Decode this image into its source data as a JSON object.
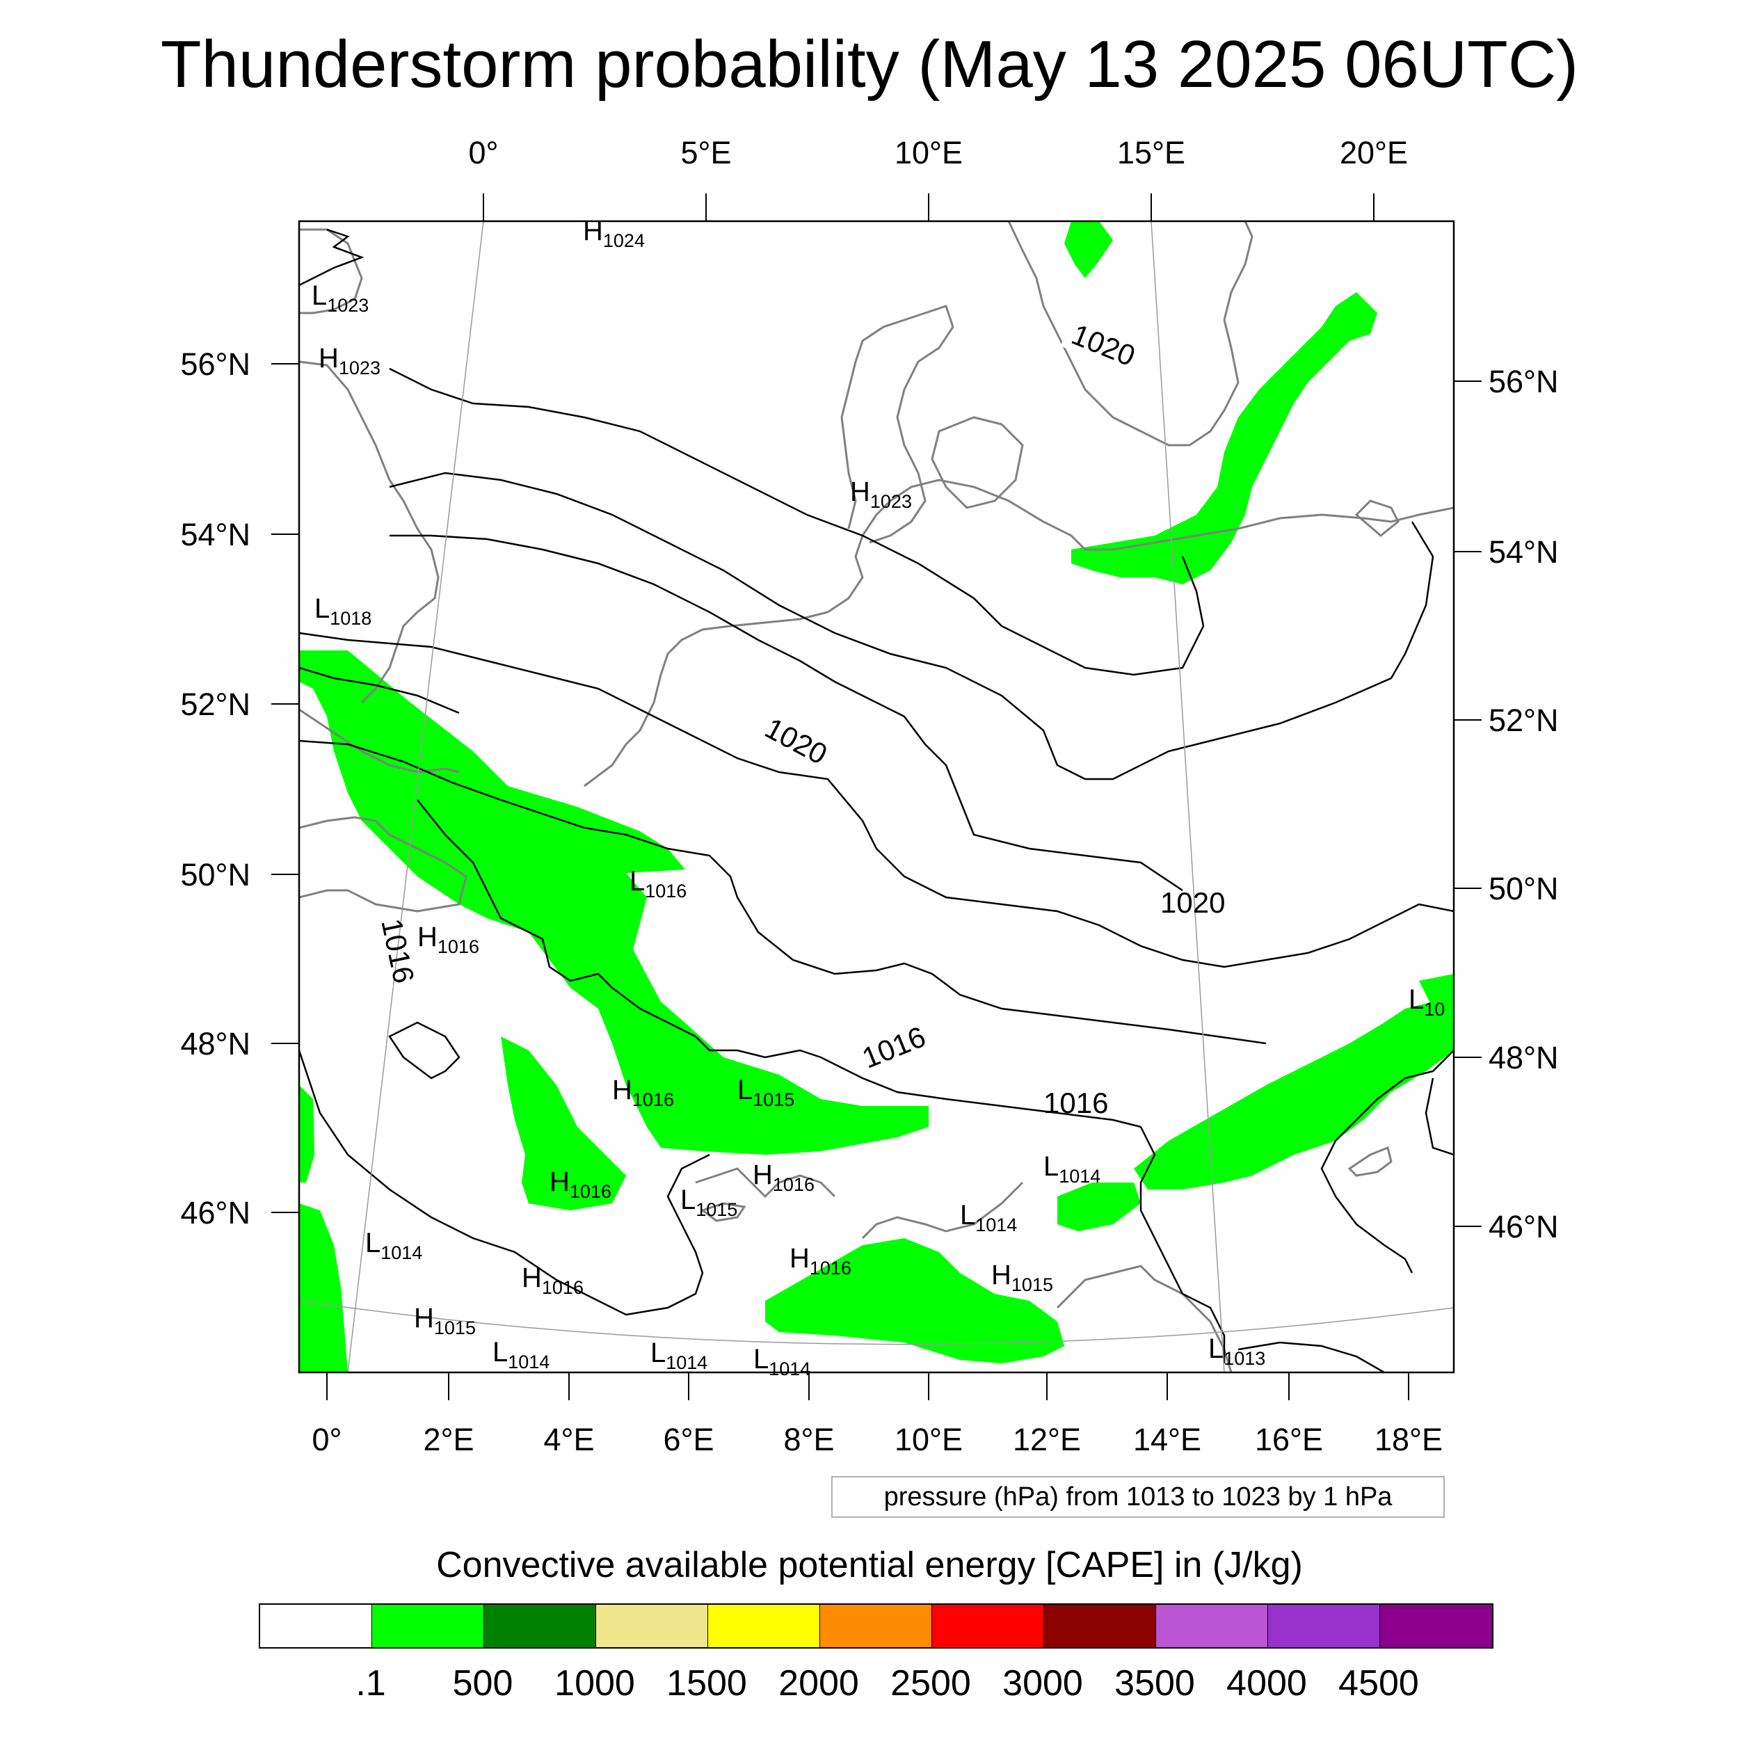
{
  "title": "Thunderstorm probability (May 13 2025 06UTC)",
  "axes": {
    "top_lon_labels": [
      "0°",
      "5°E",
      "10°E",
      "15°E",
      "20°E"
    ],
    "bottom_lon_labels": [
      "0°",
      "2°E",
      "4°E",
      "6°E",
      "8°E",
      "10°E",
      "12°E",
      "14°E",
      "16°E",
      "18°E"
    ],
    "left_lat_labels": [
      "56°N",
      "54°N",
      "52°N",
      "50°N",
      "48°N",
      "46°N"
    ],
    "right_lat_labels": [
      "56°N",
      "54°N",
      "52°N",
      "50°N",
      "48°N",
      "46°N"
    ]
  },
  "pressure_centers": [
    {
      "type": "H",
      "value": "1024"
    },
    {
      "type": "L",
      "value": "1023"
    },
    {
      "type": "H",
      "value": "1023"
    },
    {
      "type": "H",
      "value": "1023"
    },
    {
      "type": "L",
      "value": "1018"
    },
    {
      "type": "L",
      "value": "1016"
    },
    {
      "type": "H",
      "value": "1016"
    },
    {
      "type": "L",
      "value": "10"
    },
    {
      "type": "H",
      "value": "1016"
    },
    {
      "type": "L",
      "value": "1015"
    },
    {
      "type": "H",
      "value": "1016"
    },
    {
      "type": "H",
      "value": "1016"
    },
    {
      "type": "L",
      "value": "1015"
    },
    {
      "type": "L",
      "value": "1014"
    },
    {
      "type": "L",
      "value": "1014"
    },
    {
      "type": "L",
      "value": "1014"
    },
    {
      "type": "H",
      "value": "1016"
    },
    {
      "type": "H",
      "value": "1016"
    },
    {
      "type": "H",
      "value": "1015"
    },
    {
      "type": "H",
      "value": "1015"
    },
    {
      "type": "L",
      "value": "1014"
    },
    {
      "type": "L",
      "value": "1014"
    },
    {
      "type": "L",
      "value": "1014"
    },
    {
      "type": "L",
      "value": "1013"
    }
  ],
  "contour_labels": [
    "1020",
    "1020",
    "1020",
    "1016",
    "1016",
    "1016"
  ],
  "info_box": "pressure (hPa) from 1013 to 1023 by 1 hPa",
  "colorbar": {
    "title": "Convective available potential energy [CAPE] in (J/kg)",
    "colors": [
      "#ffffff",
      "#00ff00",
      "#008000",
      "#f0e68c",
      "#ffff00",
      "#ff8c00",
      "#ff0000",
      "#8b0000",
      "#ba55d3",
      "#9932cc",
      "#8b008b"
    ],
    "labels": [
      ".1",
      "500",
      "1000",
      "1500",
      "2000",
      "2500",
      "3000",
      "3500",
      "4000",
      "4500"
    ]
  }
}
